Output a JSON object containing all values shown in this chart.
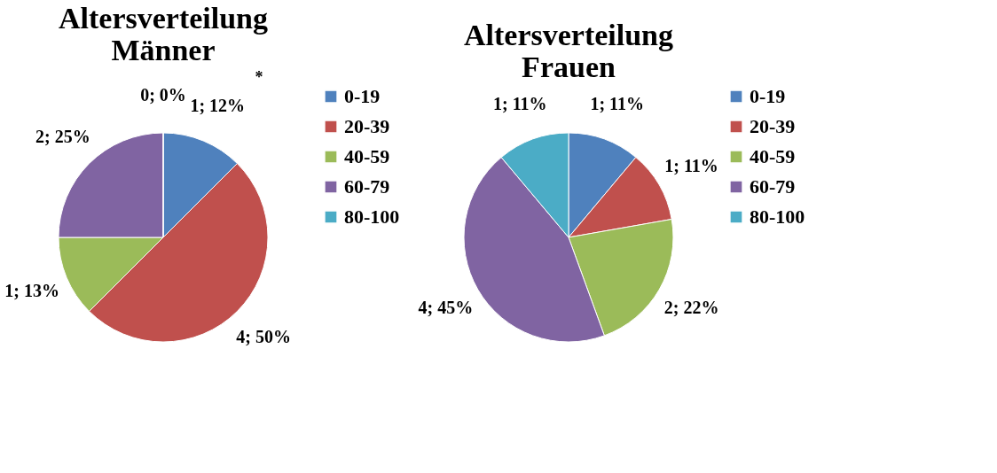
{
  "chart_data": [
    {
      "type": "pie",
      "title": "Altersverteilung Männer",
      "categories": [
        "0-19",
        "20-39",
        "40-59",
        "60-79",
        "80-100"
      ],
      "values": [
        1,
        4,
        1,
        2,
        0
      ],
      "value_labels": [
        "1; 12%",
        "4; 50%",
        "1; 13%",
        "2; 25%",
        "0; 0%"
      ],
      "colors": [
        "#4f81bd",
        "#c0504d",
        "#9bbb59",
        "#8064a2",
        "#4bacc6"
      ],
      "legend": "right",
      "annotations": [
        "*"
      ]
    },
    {
      "type": "pie",
      "title": "Altersverteilung Frauen",
      "categories": [
        "0-19",
        "20-39",
        "40-59",
        "60-79",
        "80-100"
      ],
      "values": [
        1,
        1,
        2,
        4,
        1
      ],
      "value_labels": [
        "1; 11%",
        "1; 11%",
        "2; 22%",
        "4; 45%",
        "1; 11%"
      ],
      "colors": [
        "#4f81bd",
        "#c0504d",
        "#9bbb59",
        "#8064a2",
        "#4bacc6"
      ],
      "legend": "right"
    }
  ]
}
